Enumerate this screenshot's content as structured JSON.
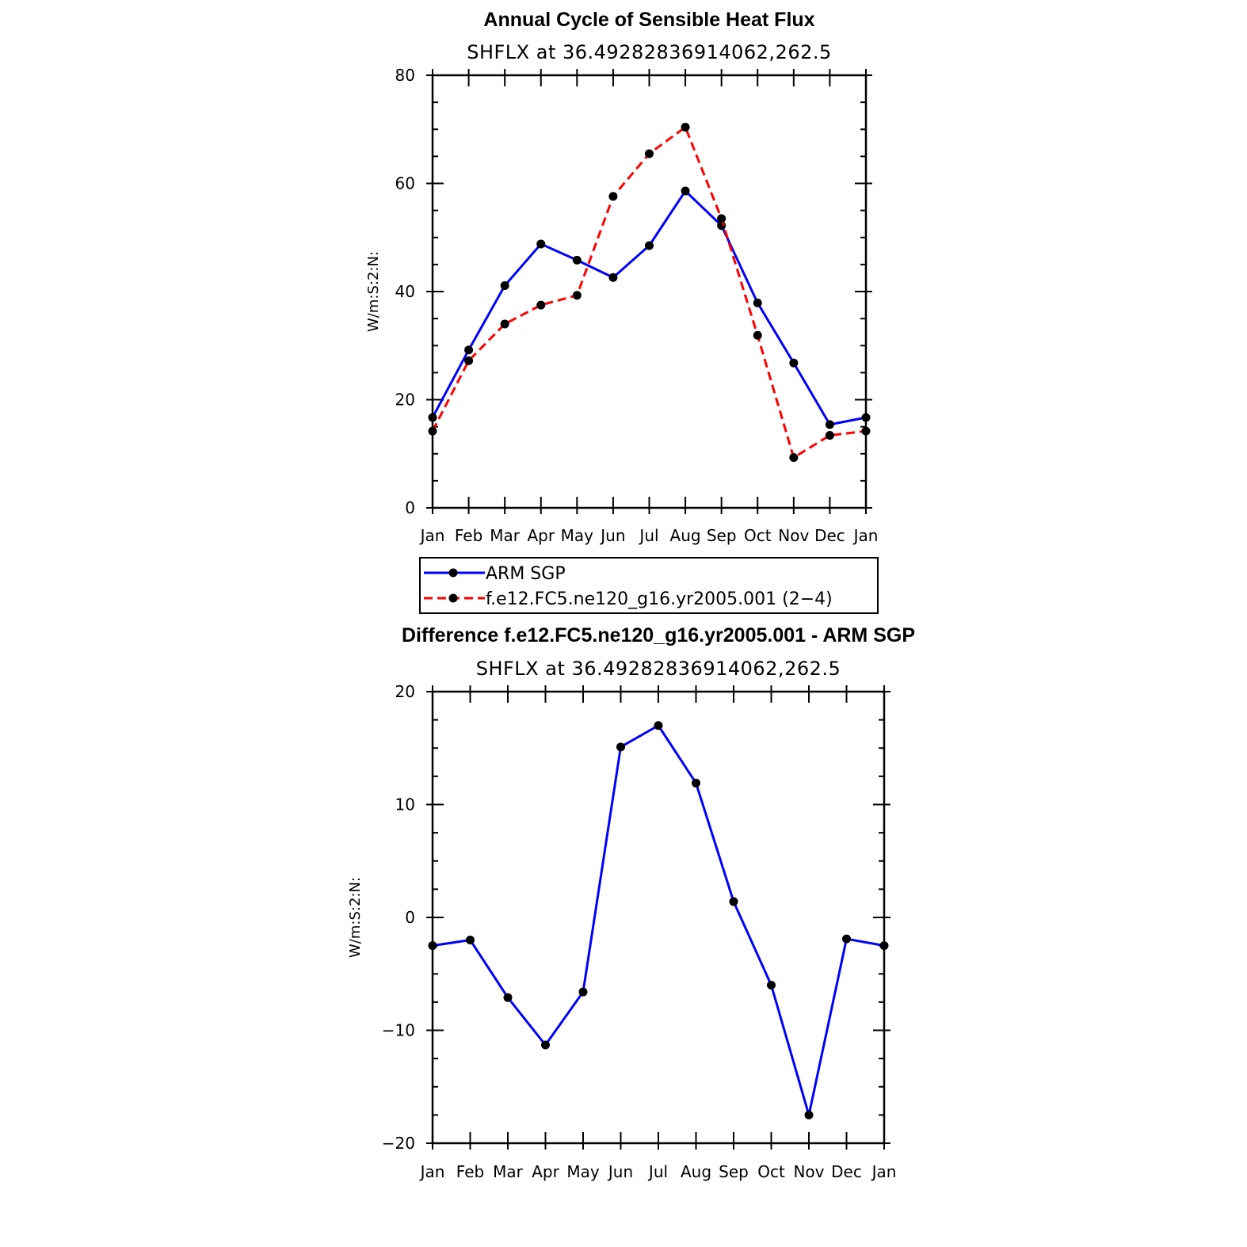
{
  "chart_data": [
    {
      "type": "line",
      "title": "Annual Cycle of Sensible Heat Flux",
      "subtitle": "SHFLX at 36.49282836914062,262.5",
      "ylabel": "W/m:S:2:N:",
      "xlabel": "",
      "categories": [
        "Jan",
        "Feb",
        "Mar",
        "Apr",
        "May",
        "Jun",
        "Jul",
        "Aug",
        "Sep",
        "Oct",
        "Nov",
        "Dec",
        "Jan"
      ],
      "ylim": [
        0,
        80
      ],
      "yticks": [
        0,
        20,
        40,
        60,
        80
      ],
      "series": [
        {
          "name": "ARM SGP",
          "color": "#0000ff",
          "dash": "solid",
          "values": [
            16.7,
            29.2,
            41.1,
            48.8,
            45.8,
            42.6,
            48.5,
            58.6,
            52.2,
            37.9,
            26.8,
            15.4,
            16.7
          ]
        },
        {
          "name": "f.e12.FC5.ne120_g16.yr2005.001 (2−4)",
          "color": "#ff0000",
          "dash": "dashed",
          "values": [
            14.2,
            27.2,
            34.0,
            37.5,
            39.3,
            57.6,
            65.5,
            70.4,
            53.5,
            31.9,
            9.3,
            13.4,
            14.2
          ]
        }
      ],
      "legend": "bottom"
    },
    {
      "type": "line",
      "title": "Difference f.e12.FC5.ne120_g16.yr2005.001 - ARM SGP",
      "subtitle": "SHFLX at 36.49282836914062,262.5",
      "ylabel": "W/m:S:2:N:",
      "xlabel": "",
      "categories": [
        "Jan",
        "Feb",
        "Mar",
        "Apr",
        "May",
        "Jun",
        "Jul",
        "Aug",
        "Sep",
        "Oct",
        "Nov",
        "Dec",
        "Jan"
      ],
      "ylim": [
        -20,
        20
      ],
      "yticks": [
        -20,
        -10,
        0,
        10,
        20
      ],
      "series": [
        {
          "color": "#0000ff",
          "dash": "solid",
          "values": [
            -2.5,
            -2.0,
            -7.1,
            -11.3,
            -6.6,
            15.1,
            17.0,
            11.9,
            1.4,
            -6.0,
            -17.5,
            -1.9,
            -2.5
          ]
        }
      ]
    }
  ]
}
